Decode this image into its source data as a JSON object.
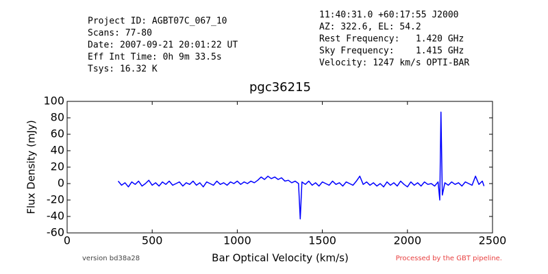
{
  "chart_data": {
    "type": "line",
    "title": "pgc36215",
    "info_left": [
      "Project ID: AGBT07C_067_10",
      "Scans: 77-80",
      "Date: 2007-09-21 20:01:22 UT",
      "Eff Int Time: 0h 9m 33.5s",
      "Tsys: 16.32 K"
    ],
    "info_right": [
      "11:40:31.0 +60:17:55 J2000",
      "AZ: 322.6, EL: 54.2",
      "Rest Frequency:   1.420 GHz",
      "Sky Frequency:    1.415 GHz",
      "Velocity: 1247 km/s OPTI-BAR"
    ],
    "x_label": "Bar Optical Velocity (km/s)",
    "y_label": "Flux Density (mJy)",
    "footer_left": "version bd38a28",
    "footer_right": "Processed by the GBT pipeline.",
    "xlim": [
      0,
      2500
    ],
    "xticks": [
      0,
      500,
      1000,
      1500,
      2000,
      2500
    ],
    "ylim": [
      -60,
      100
    ],
    "yticks": [
      -60,
      -40,
      -20,
      0,
      20,
      40,
      60,
      80,
      100
    ],
    "x": [
      300,
      320,
      340,
      360,
      380,
      400,
      420,
      440,
      460,
      480,
      500,
      520,
      540,
      560,
      580,
      600,
      620,
      640,
      660,
      680,
      700,
      720,
      740,
      760,
      780,
      800,
      820,
      840,
      860,
      880,
      900,
      920,
      940,
      960,
      980,
      1000,
      1020,
      1040,
      1060,
      1080,
      1100,
      1120,
      1140,
      1160,
      1180,
      1200,
      1220,
      1240,
      1260,
      1280,
      1300,
      1320,
      1340,
      1360,
      1370,
      1380,
      1400,
      1420,
      1440,
      1460,
      1480,
      1500,
      1520,
      1540,
      1560,
      1580,
      1600,
      1620,
      1640,
      1660,
      1680,
      1700,
      1720,
      1740,
      1760,
      1780,
      1800,
      1820,
      1840,
      1860,
      1880,
      1900,
      1920,
      1940,
      1960,
      1980,
      2000,
      2020,
      2040,
      2060,
      2080,
      2100,
      2120,
      2140,
      2160,
      2180,
      2190,
      2197,
      2205,
      2220,
      2240,
      2260,
      2280,
      2300,
      2320,
      2340,
      2360,
      2380,
      2400,
      2420,
      2440,
      2450
    ],
    "series": [
      {
        "color": "#0000ff",
        "values": [
          3,
          -2,
          1,
          -4,
          2,
          -1,
          3,
          -3,
          0,
          4,
          -2,
          1,
          -3,
          2,
          -1,
          3,
          -2,
          0,
          2,
          -3,
          1,
          -1,
          3,
          -2,
          1,
          -4,
          2,
          0,
          -2,
          3,
          -1,
          1,
          -2,
          2,
          0,
          3,
          -1,
          2,
          0,
          3,
          1,
          4,
          8,
          5,
          9,
          6,
          8,
          5,
          7,
          3,
          4,
          1,
          3,
          0,
          -43,
          2,
          -1,
          3,
          -2,
          1,
          -3,
          2,
          0,
          -2,
          3,
          -1,
          1,
          -3,
          2,
          0,
          -2,
          3,
          9,
          -1,
          2,
          -2,
          1,
          -3,
          0,
          -4,
          2,
          -2,
          1,
          -3,
          3,
          -1,
          -4,
          2,
          -2,
          1,
          -3,
          2,
          -1,
          0,
          -3,
          2,
          -20,
          87,
          -14,
          1,
          -2,
          2,
          -1,
          1,
          -3,
          2,
          0,
          -2,
          9,
          -1,
          3,
          -3
        ]
      }
    ]
  }
}
